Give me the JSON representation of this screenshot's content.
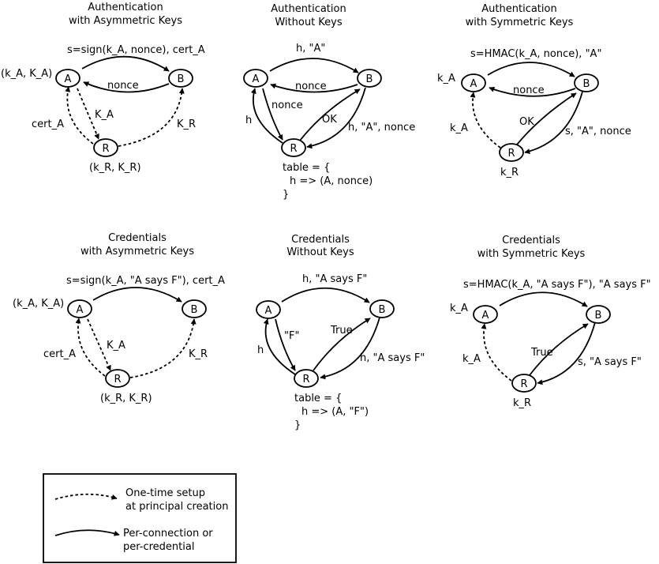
{
  "panels": {
    "auth_asym": {
      "title": [
        "Authentication",
        "with Asymmetric Keys"
      ],
      "edge_labels": {
        "a_to_b": "s=sign(k_A, nonce), cert_A",
        "b_to_a": "nonce",
        "r_to_a": "cert_A",
        "a_to_r": "K_A",
        "r_to_b": "K_R"
      },
      "node_notes": {
        "a": "(k_A, K_A)",
        "r": "(k_R, K_R)"
      }
    },
    "auth_none": {
      "title": [
        "Authentication",
        "Without Keys"
      ],
      "edge_labels": {
        "a_to_b": "h, \"A\"",
        "b_to_a": "nonce",
        "r_to_a": "h",
        "a_to_r": "nonce",
        "r_to_b": "OK",
        "b_to_r": "h, \"A\", nonce"
      },
      "table": [
        "table = {",
        "h => (A, nonce)",
        "}"
      ]
    },
    "auth_sym": {
      "title": [
        "Authentication",
        "with Symmetric Keys"
      ],
      "edge_labels": {
        "a_to_b": "s=HMAC(k_A, nonce), \"A\"",
        "b_to_a": "nonce",
        "r_to_a": "k_A",
        "r_to_b": "OK",
        "b_to_r": "s, \"A\", nonce"
      },
      "node_notes": {
        "a": "k_A",
        "r": "k_R"
      }
    },
    "cred_asym": {
      "title": [
        "Credentials",
        "with Asymmetric Keys"
      ],
      "edge_labels": {
        "a_to_b": "s=sign(k_A, \"A says F\"), cert_A",
        "r_to_a": "cert_A",
        "a_to_r": "K_A",
        "r_to_b": "K_R"
      },
      "node_notes": {
        "a": "(k_A, K_A)",
        "r": "(k_R, K_R)"
      }
    },
    "cred_none": {
      "title": [
        "Credentials",
        "Without Keys"
      ],
      "edge_labels": {
        "a_to_b": "h, \"A says F\"",
        "r_to_a": "h",
        "a_to_r": "\"F\"",
        "r_to_b": "True",
        "b_to_r": "h, \"A says F\""
      },
      "table": [
        "table = {",
        "h => (A, \"F\")",
        "}"
      ]
    },
    "cred_sym": {
      "title": [
        "Credentials",
        "with Symmetric Keys"
      ],
      "edge_labels": {
        "a_to_b": "s=HMAC(k_A, \"A says F\"), \"A says F\"",
        "r_to_a": "k_A",
        "r_to_b": "True",
        "b_to_r": "s, \"A says F\""
      },
      "node_notes": {
        "a": "k_A",
        "r": "k_R"
      }
    }
  },
  "nodes": {
    "a": "A",
    "b": "B",
    "r": "R"
  },
  "legend": {
    "dashed": [
      "One-time setup",
      "at principal creation"
    ],
    "solid": [
      "Per-connection or",
      "per-credential"
    ]
  }
}
